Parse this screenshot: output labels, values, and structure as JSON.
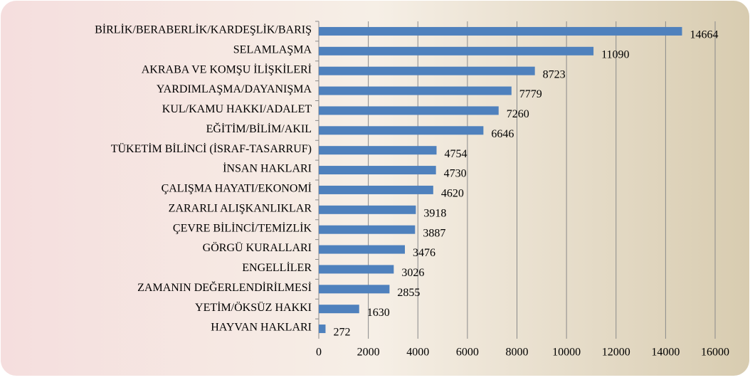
{
  "chart_data": {
    "type": "barh",
    "categories": [
      "BİRLİK/BERABERLİK/KARDEŞLİK/BARIŞ",
      "SELAMLAŞMA",
      "AKRABA VE KOMŞU İLİŞKİLERİ",
      "YARDIMLAŞMA/DAYANIŞMA",
      "KUL/KAMU HAKKI/ADALET",
      "EĞİTİM/BİLİM/AKIL",
      "TÜKETİM BİLİNCİ (İSRAF-TASARRUF)",
      "İNSAN HAKLARI",
      "ÇALIŞMA HAYATI/EKONOMİ",
      "ZARARLI ALIŞKANLIKLAR",
      "ÇEVRE BİLİNCİ/TEMİZLİK",
      "GÖRGÜ KURALLARI",
      "ENGELLİLER",
      "ZAMANIN DEĞERLENDİRİLMESİ",
      "YETİM/ÖKSÜZ HAKKI",
      "HAYVAN HAKLARI"
    ],
    "values": [
      14664,
      11090,
      8723,
      7779,
      7260,
      6646,
      4754,
      4730,
      4620,
      3918,
      3887,
      3476,
      3026,
      2855,
      1630,
      272
    ],
    "color": "#4f81bd",
    "xlim": [
      0,
      16000
    ],
    "xticks": [
      0,
      2000,
      4000,
      6000,
      8000,
      10000,
      12000,
      14000,
      16000
    ],
    "grid": true
  }
}
